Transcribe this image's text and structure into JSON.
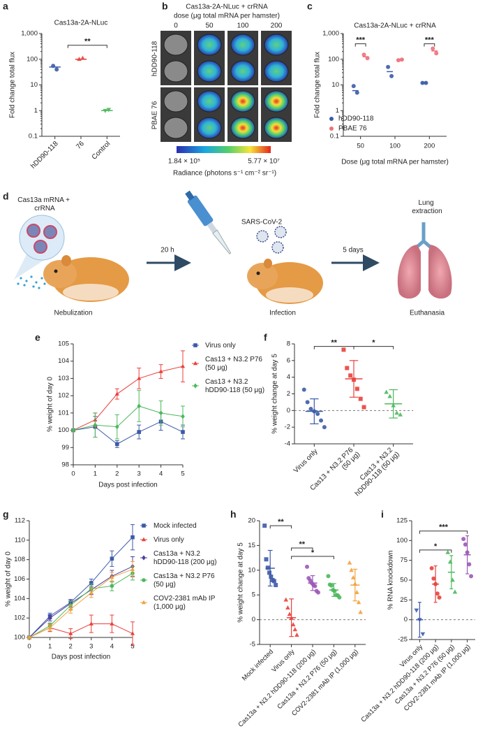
{
  "image_panel": {
    "panel": "b",
    "title": "Cas13a-2A-NLuc + crRNA",
    "subtitle": "dose (μg total mRNA per hamster)",
    "columns": [
      "0",
      "50",
      "100",
      "200"
    ],
    "rows": [
      "hDD90-118",
      "PBAE 76"
    ],
    "colorbar_min": "1.84 × 10⁵",
    "colorbar_max": "5.77 × 10⁷",
    "colorbar_label": "Radiance (photons s⁻¹ cm⁻² sr⁻¹)"
  },
  "schematic": {
    "panel": "d",
    "treatment": "Cas13a mRNA + crRNA",
    "step1": "Nebulization",
    "interval1": "20 h",
    "virus": "SARS-CoV-2",
    "step2": "Infection",
    "interval2": "5 days",
    "outcome": "Lung extraction",
    "step3": "Euthanasia"
  },
  "chart_data": [
    {
      "panel": "a",
      "type": "dot",
      "title": "Cas13a-2A-NLuc",
      "ylabel": "Fold change total flux",
      "log": true,
      "ylim": [
        0.1,
        1000
      ],
      "yticks": [
        0.1,
        1,
        10,
        100,
        {
          "value": 1000,
          "label": "1,000"
        }
      ],
      "categories": [
        "hDD90-118",
        "76",
        "Control"
      ],
      "series": [
        {
          "colors": [
            "#3b5ca8",
            "#e8413c",
            "#4cb85c"
          ],
          "markers": [
            "circle",
            "triangle",
            "triangle-down"
          ],
          "values": [
            50,
            100,
            1
          ],
          "points": [
            [
              55,
              40
            ],
            [
              100,
              110
            ],
            [
              1,
              1.1
            ]
          ]
        }
      ],
      "significance": [
        "**"
      ]
    },
    {
      "panel": "c",
      "type": "dot",
      "title": "Cas13a-2A-NLuc + crRNA",
      "ylabel": "Fold change total flux",
      "xlabel": "Dose (μg total mRNA per hamster)",
      "log": true,
      "ylim": [
        0.1,
        1000
      ],
      "yticks": [
        0.1,
        1,
        10,
        100,
        {
          "value": 1000,
          "label": "1,000"
        }
      ],
      "categories": [
        "50",
        "100",
        "200"
      ],
      "legend": "lower left",
      "series": [
        {
          "name": "hDD90-118",
          "color": "#3b5ca8",
          "marker": "circle",
          "values": [
            6,
            33,
            12
          ],
          "points": [
            [
              9,
              5
            ],
            [
              50,
              22
            ],
            [
              12,
              12
            ]
          ]
        },
        {
          "name": "PBAE 76",
          "color": "#f0707a",
          "marker": "circle",
          "values": [
            125,
            95,
            210
          ],
          "points": [
            [
              150,
              110
            ],
            [
              92,
              97
            ],
            [
              260,
              170
            ]
          ]
        }
      ],
      "significance": [
        "***",
        "***"
      ]
    },
    {
      "panel": "e",
      "type": "line",
      "ylabel": "% weight of day 0",
      "xlabel": "Days post infection",
      "x": [
        0,
        1,
        2,
        3,
        4,
        5
      ],
      "xlim": [
        0,
        5
      ],
      "xticks": [
        0,
        1,
        2,
        3,
        4,
        5
      ],
      "ylim": [
        98,
        105
      ],
      "yticks": [
        98,
        99,
        100,
        101,
        102,
        103,
        104,
        105
      ],
      "legend": "right",
      "series": [
        {
          "name": "Virus only",
          "color": "#3d5aa8",
          "marker": "square",
          "values": [
            100,
            100.2,
            99.2,
            99.9,
            100.5,
            99.9
          ],
          "errors": [
            0.05,
            0.6,
            0.2,
            0.4,
            0.5,
            0.4
          ]
        },
        {
          "name": "Cas13 + N3.2 P76 (50 μg)",
          "color": "#e8413c",
          "marker": "triangle",
          "values": [
            100,
            100.6,
            102.1,
            103.0,
            103.4,
            103.7
          ],
          "errors": [
            0.05,
            0.4,
            0.3,
            0.6,
            0.4,
            0.9
          ]
        },
        {
          "name": "Cas13 + N3.2 hDD90-118 (50 μg)",
          "color": "#4cb85c",
          "marker": "diamond",
          "values": [
            100,
            100.3,
            100.2,
            101.4,
            101.0,
            100.8
          ],
          "errors": [
            0.05,
            0.7,
            0.7,
            0.9,
            0.7,
            0.6
          ]
        }
      ]
    },
    {
      "panel": "f",
      "type": "dot",
      "ylabel": "% weight change at day 5",
      "ylim": [
        -4,
        8
      ],
      "yticks": [
        -4,
        -2,
        0,
        2,
        4,
        6,
        8
      ],
      "zero_line": true,
      "categories": [
        "Virus only",
        "Cas13 + N3.2 P76 (50 μg)",
        "Cas13 + N3.2 hDD90-118 (50 μg)"
      ],
      "series": [
        {
          "colors": [
            "#3b5ca8",
            "#e8413c",
            "#4cb85c"
          ],
          "markers": [
            "circle",
            "square",
            "triangle"
          ],
          "values": [
            -0.1,
            3.8,
            0.8
          ],
          "errors": [
            1.5,
            2.2,
            1.7
          ],
          "points": [
            [
              2.5,
              1.0,
              0.2,
              -0.1,
              -0.4,
              -1.2,
              -2.0
            ],
            [
              7.3,
              5.1,
              4.2,
              3.7,
              2.6,
              1.4,
              0.4
            ],
            [
              2.2,
              1.7,
              0.6,
              -0.3,
              -0.5
            ]
          ]
        }
      ],
      "significance": [
        "**",
        "*"
      ]
    },
    {
      "panel": "g",
      "type": "line",
      "ylabel": "% weight of day 0",
      "xlabel": "Days post infection",
      "x": [
        0,
        1,
        2,
        3,
        4,
        5
      ],
      "xlim": [
        0,
        5
      ],
      "xticks": [
        0,
        1,
        2,
        3,
        4,
        5
      ],
      "ylim": [
        100,
        112
      ],
      "yticks": [
        100,
        102,
        104,
        106,
        108,
        110,
        112
      ],
      "legend": "right",
      "series": [
        {
          "name": "Mock infected",
          "color": "#3d5aa8",
          "marker": "square",
          "values": [
            100,
            102.2,
            103.6,
            105.6,
            108.1,
            110.3
          ],
          "errors": [
            0.05,
            0.3,
            0.3,
            0.4,
            0.8,
            1.3
          ]
        },
        {
          "name": "Virus only",
          "color": "#e8413c",
          "marker": "triangle",
          "values": [
            100,
            101.0,
            100.4,
            101.4,
            101.4,
            100.4
          ],
          "errors": [
            0.05,
            0.4,
            0.5,
            0.9,
            0.9,
            1.2
          ]
        },
        {
          "name": "Cas13a + N3.2 hDD90-118 (200 μg)",
          "color": "#4b3f9e",
          "marker": "diamond",
          "values": [
            100,
            102.0,
            103.5,
            104.9,
            106.3,
            107.3
          ],
          "errors": [
            0.05,
            0.3,
            0.4,
            0.5,
            0.6,
            1.0
          ]
        },
        {
          "name": "Cas13a + N3.2 P76 (50 μg)",
          "color": "#4cb85c",
          "marker": "circle",
          "values": [
            100,
            101.2,
            103.3,
            105.0,
            105.3,
            106.6
          ],
          "errors": [
            0.05,
            0.3,
            0.4,
            0.5,
            0.5,
            0.7
          ]
        },
        {
          "name": "COV2-2381 mAb IP (1,000 μg)",
          "color": "#f3a03c",
          "marker": "triangle",
          "values": [
            100,
            101.0,
            102.9,
            104.6,
            106.2,
            107.0
          ],
          "errors": [
            0.05,
            0.3,
            0.4,
            0.5,
            0.5,
            0.8
          ]
        }
      ]
    },
    {
      "panel": "h",
      "type": "dot",
      "ylabel": "% weight change at day 5",
      "ylim": [
        -5,
        20
      ],
      "yticks": [
        -5,
        0,
        5,
        10,
        15,
        20
      ],
      "zero_line": true,
      "categories": [
        "Mock infected",
        "Virus only",
        "Cas13a + N3.2 hDD90-118 (200 μg)",
        "Cas13a + N3.2 P76 (50 μg)",
        "COV2-2381 mAb IP (1,000 μg)"
      ],
      "series": [
        {
          "colors": [
            "#3d5aa8",
            "#e8413c",
            "#9b59b6",
            "#4cb85c",
            "#f3a03c"
          ],
          "markers": [
            "square",
            "triangle",
            "circle",
            "circle",
            "triangle"
          ],
          "values": [
            10.4,
            0.4,
            7.4,
            6.0,
            7.0
          ],
          "errors": [
            3.6,
            3.8,
            1.5,
            1.3,
            3.2
          ],
          "points": [
            [
              19.0,
              12.2,
              10.5,
              9.5,
              8.7,
              8.0,
              7.8,
              7.0
            ],
            [
              4.0,
              2.4,
              1.1,
              0.3,
              -1.0,
              -2.0,
              -3.1
            ],
            [
              10.7,
              8.4,
              7.9,
              7.4,
              7.0,
              6.8,
              5.8,
              5.5
            ],
            [
              8.8,
              7.1,
              6.9,
              6.0,
              5.8,
              5.0,
              4.9,
              4.5
            ],
            [
              11.5,
              10.0,
              8.5,
              7.2,
              5.5,
              3.5,
              1.5
            ]
          ]
        }
      ],
      "significance": [
        "**",
        "**",
        "*"
      ]
    },
    {
      "panel": "i",
      "type": "dot",
      "ylabel": "% RNA knockdown",
      "ylim": [
        -25,
        125
      ],
      "yticks": [
        -25,
        0,
        25,
        50,
        75,
        100,
        125
      ],
      "zero_line": true,
      "categories": [
        "Virus only",
        "Cas13a + N3.2 hDD90-118 (200 μg)",
        "Cas13a + N3.2 P76 (50 μg)",
        "COV2-2381 mAb IP (1,000 μg)"
      ],
      "series": [
        {
          "colors": [
            "#3d5aa8",
            "#e8413c",
            "#4cb85c",
            "#9b59b6"
          ],
          "markers": [
            "triangle-down",
            "circle",
            "triangle",
            "circle"
          ],
          "values": [
            0,
            45,
            60,
            82
          ],
          "errors": [
            22,
            23,
            21,
            24
          ],
          "points": [
            [
              12,
              0,
              -18
            ],
            [
              65,
              52,
              45,
              33,
              28
            ],
            [
              85,
              73,
              50,
              35
            ],
            [
              102,
              95,
              85,
              70,
              55
            ]
          ]
        }
      ],
      "significance": [
        "*",
        "***"
      ]
    }
  ]
}
